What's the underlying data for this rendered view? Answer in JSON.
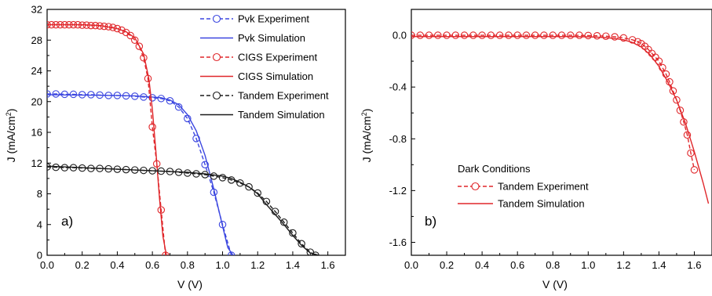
{
  "chart_data": [
    {
      "type": "line",
      "panel_label": "a)",
      "xlabel": "V (V)",
      "ylabel": "J (mA/cm²)",
      "ylabel_parts": {
        "main": "J (mA/cm",
        "sup": "2",
        "end": ")"
      },
      "xlim": [
        0.0,
        1.7
      ],
      "ylim": [
        0,
        32
      ],
      "xticks": [
        0.0,
        0.2,
        0.4,
        0.6,
        0.8,
        1.0,
        1.2,
        1.4,
        1.6
      ],
      "yticks": [
        0,
        4,
        8,
        12,
        16,
        20,
        24,
        28,
        32
      ],
      "xtick_labels": [
        "0.0",
        "0.2",
        "0.4",
        "0.6",
        "0.8",
        "1.0",
        "1.2",
        "1.4",
        "1.6"
      ],
      "ytick_labels": [
        "0",
        "4",
        "8",
        "12",
        "16",
        "20",
        "24",
        "28",
        "32"
      ],
      "grid": false,
      "legend_position": "top-right",
      "series": [
        {
          "name": "Pvk Experiment",
          "color": "#3b46e0",
          "style": "dashed",
          "marker": "circle",
          "x": [
            0.0,
            0.05,
            0.1,
            0.15,
            0.2,
            0.25,
            0.3,
            0.35,
            0.4,
            0.45,
            0.5,
            0.55,
            0.6,
            0.65,
            0.7,
            0.75,
            0.8,
            0.85,
            0.9,
            0.95,
            1.0,
            1.05
          ],
          "y": [
            21.0,
            21.0,
            20.95,
            20.95,
            20.9,
            20.9,
            20.85,
            20.8,
            20.8,
            20.75,
            20.7,
            20.6,
            20.5,
            20.4,
            20.1,
            19.3,
            17.8,
            15.2,
            11.8,
            8.2,
            4.0,
            0.0
          ]
        },
        {
          "name": "Pvk Simulation",
          "color": "#3b46e0",
          "style": "solid",
          "marker": "none",
          "x": [
            0.0,
            0.2,
            0.4,
            0.5,
            0.6,
            0.65,
            0.7,
            0.75,
            0.8,
            0.85,
            0.9,
            0.95,
            1.0,
            1.03,
            1.06
          ],
          "y": [
            20.9,
            20.85,
            20.8,
            20.75,
            20.6,
            20.5,
            20.2,
            19.6,
            18.3,
            16.2,
            13.0,
            8.6,
            3.8,
            1.0,
            0.0
          ]
        },
        {
          "name": "CIGS Experiment",
          "color": "#e0262a",
          "style": "dashed",
          "marker": "circle",
          "x": [
            0.0,
            0.025,
            0.05,
            0.075,
            0.1,
            0.125,
            0.15,
            0.175,
            0.2,
            0.225,
            0.25,
            0.275,
            0.3,
            0.325,
            0.35,
            0.375,
            0.4,
            0.425,
            0.45,
            0.475,
            0.5,
            0.525,
            0.55,
            0.575,
            0.6,
            0.625,
            0.65,
            0.675
          ],
          "y": [
            30.0,
            30.0,
            30.0,
            30.0,
            30.0,
            30.0,
            30.0,
            30.0,
            29.95,
            29.95,
            29.9,
            29.9,
            29.85,
            29.8,
            29.75,
            29.65,
            29.5,
            29.3,
            29.0,
            28.6,
            28.0,
            27.2,
            25.7,
            23.0,
            16.7,
            11.9,
            5.9,
            0.0
          ]
        },
        {
          "name": "CIGS Simulation",
          "color": "#e0262a",
          "style": "solid",
          "marker": "none",
          "x": [
            0.0,
            0.2,
            0.3,
            0.4,
            0.45,
            0.5,
            0.55,
            0.58,
            0.6,
            0.62,
            0.64,
            0.66,
            0.68
          ],
          "y": [
            30.0,
            30.0,
            29.9,
            29.5,
            29.1,
            28.3,
            26.2,
            23.0,
            19.0,
            13.5,
            7.5,
            2.5,
            0.0
          ]
        },
        {
          "name": "Tandem Experiment",
          "color": "#1a1a1a",
          "style": "dashed",
          "marker": "circle",
          "x": [
            0.0,
            0.05,
            0.1,
            0.15,
            0.2,
            0.25,
            0.3,
            0.35,
            0.4,
            0.45,
            0.5,
            0.55,
            0.6,
            0.65,
            0.7,
            0.75,
            0.8,
            0.85,
            0.9,
            0.95,
            1.0,
            1.05,
            1.1,
            1.15,
            1.2,
            1.25,
            1.3,
            1.35,
            1.4,
            1.45,
            1.5,
            1.53
          ],
          "y": [
            11.5,
            11.45,
            11.4,
            11.4,
            11.35,
            11.3,
            11.3,
            11.25,
            11.2,
            11.15,
            11.1,
            11.05,
            11.0,
            10.95,
            10.9,
            10.8,
            10.7,
            10.6,
            10.5,
            10.3,
            10.1,
            9.8,
            9.4,
            8.9,
            8.1,
            7.0,
            5.7,
            4.3,
            2.9,
            1.5,
            0.4,
            0.0
          ]
        },
        {
          "name": "Tandem Simulation",
          "color": "#1a1a1a",
          "style": "solid",
          "marker": "none",
          "x": [
            0.0,
            0.2,
            0.4,
            0.6,
            0.8,
            0.9,
            1.0,
            1.05,
            1.1,
            1.15,
            1.2,
            1.25,
            1.3,
            1.35,
            1.4,
            1.45,
            1.5,
            1.55
          ],
          "y": [
            11.6,
            11.4,
            11.2,
            11.0,
            10.8,
            10.6,
            10.3,
            10.0,
            9.5,
            8.9,
            8.0,
            6.6,
            5.3,
            4.0,
            2.6,
            1.3,
            0.3,
            0.0
          ]
        }
      ]
    },
    {
      "type": "line",
      "panel_label": "b)",
      "xlabel": "V (V)",
      "ylabel": "J (mA/cm²)",
      "ylabel_parts": {
        "main": "J (mA/cm",
        "sup": "2",
        "end": ")"
      },
      "xlim": [
        0.0,
        1.7
      ],
      "ylim": [
        -1.7,
        0.2
      ],
      "xticks": [
        0.0,
        0.2,
        0.4,
        0.6,
        0.8,
        1.0,
        1.2,
        1.4,
        1.6
      ],
      "yticks": [
        0.0,
        -0.4,
        -0.8,
        -1.2,
        -1.6
      ],
      "xtick_labels": [
        "0.0",
        "0.2",
        "0.4",
        "0.6",
        "0.8",
        "1.0",
        "1.2",
        "1.4",
        "1.6"
      ],
      "ytick_labels": [
        "0.0",
        "-0.4",
        "-0.8",
        "-1.2",
        "-1.6"
      ],
      "grid": false,
      "legend_position": "bottom-left",
      "legend_title": "Dark Conditions",
      "series": [
        {
          "name": "Tandem Experiment",
          "color": "#e0262a",
          "style": "dashed",
          "marker": "circle",
          "x": [
            0.0,
            0.05,
            0.1,
            0.15,
            0.2,
            0.25,
            0.3,
            0.35,
            0.4,
            0.45,
            0.5,
            0.55,
            0.6,
            0.65,
            0.7,
            0.75,
            0.8,
            0.85,
            0.9,
            0.95,
            1.0,
            1.05,
            1.1,
            1.15,
            1.2,
            1.25,
            1.28,
            1.3,
            1.32,
            1.34,
            1.36,
            1.38,
            1.4,
            1.42,
            1.44,
            1.46,
            1.48,
            1.5,
            1.52,
            1.54,
            1.56,
            1.58,
            1.6
          ],
          "y": [
            0.0,
            0.0,
            0.0,
            0.0,
            0.0,
            0.0,
            0.0,
            0.0,
            0.0,
            0.0,
            0.0,
            0.0,
            0.0,
            0.0,
            0.0,
            0.0,
            0.0,
            0.0,
            0.0,
            0.0,
            -0.002,
            -0.004,
            -0.007,
            -0.012,
            -0.02,
            -0.035,
            -0.05,
            -0.065,
            -0.085,
            -0.11,
            -0.14,
            -0.17,
            -0.2,
            -0.25,
            -0.3,
            -0.36,
            -0.43,
            -0.5,
            -0.58,
            -0.67,
            -0.77,
            -0.91,
            -1.04
          ]
        },
        {
          "name": "Tandem Simulation",
          "color": "#e0262a",
          "style": "solid",
          "marker": "none",
          "x": [
            0.0,
            0.5,
            0.9,
            1.0,
            1.1,
            1.15,
            1.2,
            1.25,
            1.3,
            1.35,
            1.4,
            1.45,
            1.5,
            1.55,
            1.6,
            1.65,
            1.68
          ],
          "y": [
            -0.01,
            -0.01,
            -0.01,
            -0.012,
            -0.018,
            -0.025,
            -0.035,
            -0.055,
            -0.09,
            -0.15,
            -0.24,
            -0.36,
            -0.5,
            -0.68,
            -0.9,
            -1.14,
            -1.3
          ]
        }
      ]
    }
  ]
}
